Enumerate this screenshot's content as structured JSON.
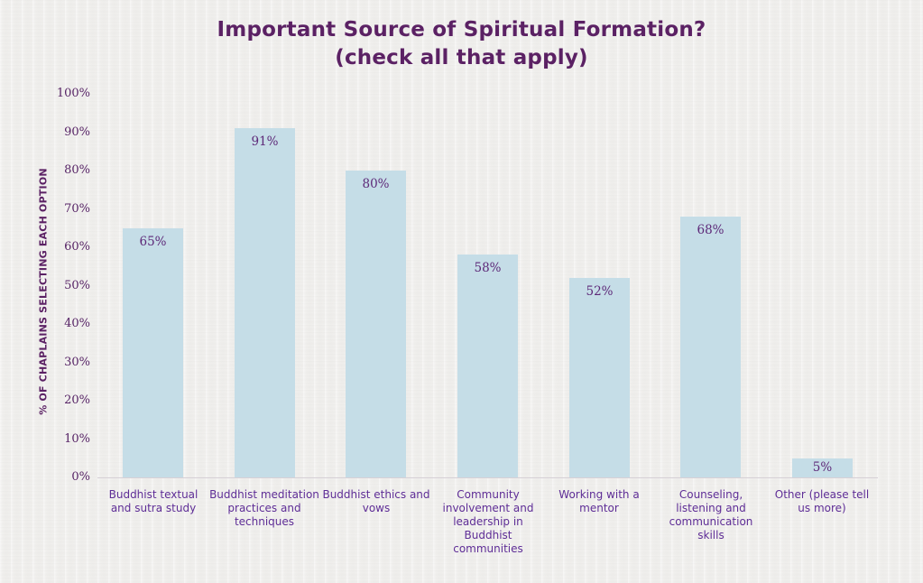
{
  "chart_data": {
    "type": "bar",
    "title": "Important Source of Spiritual Formation?",
    "subtitle": "(check all that apply)",
    "xlabel": "",
    "ylabel": "% OF CHAPLAINS SELECTING EACH OPTION",
    "categories": [
      "Buddhist textual and sutra study",
      "Buddhist meditation practices and techniques",
      "Buddhist ethics and vows",
      "Community involvement and leadership in Buddhist communities",
      "Working with a mentor",
      "Counseling, listening and communication skills",
      "Other (please tell us more)"
    ],
    "category_lines": [
      [
        "Buddhist textual",
        "and sutra study"
      ],
      [
        "Buddhist meditation",
        "practices and",
        "techniques"
      ],
      [
        "Buddhist ethics and",
        "vows"
      ],
      [
        "Community",
        "involvement and",
        "leadership in",
        "Buddhist",
        "communities"
      ],
      [
        "Working with a",
        "mentor"
      ],
      [
        "Counseling,",
        "listening and",
        "communication",
        "skills"
      ],
      [
        "Other (please tell",
        "us more)"
      ]
    ],
    "values": [
      65,
      91,
      80,
      58,
      52,
      68,
      5
    ],
    "value_labels": [
      "65%",
      "91%",
      "80%",
      "58%",
      "52%",
      "68%",
      "5%"
    ],
    "y_ticks": [
      0,
      10,
      20,
      30,
      40,
      50,
      60,
      70,
      80,
      90,
      100
    ],
    "y_tick_labels": [
      "0%",
      "10%",
      "20%",
      "30%",
      "40%",
      "50%",
      "60%",
      "70%",
      "80%",
      "90%",
      "100%"
    ],
    "ylim": [
      0,
      100
    ],
    "grid": false,
    "legend": false,
    "colors": {
      "background": "#f1f0ee",
      "bar_fill": "#c5dde7",
      "title_text": "#5b2164",
      "axis_title_text": "#5b2164",
      "tick_text": "#562365",
      "value_text": "#5d2878",
      "category_text": "#5e2d96",
      "baseline": "#d6d0d6"
    }
  }
}
